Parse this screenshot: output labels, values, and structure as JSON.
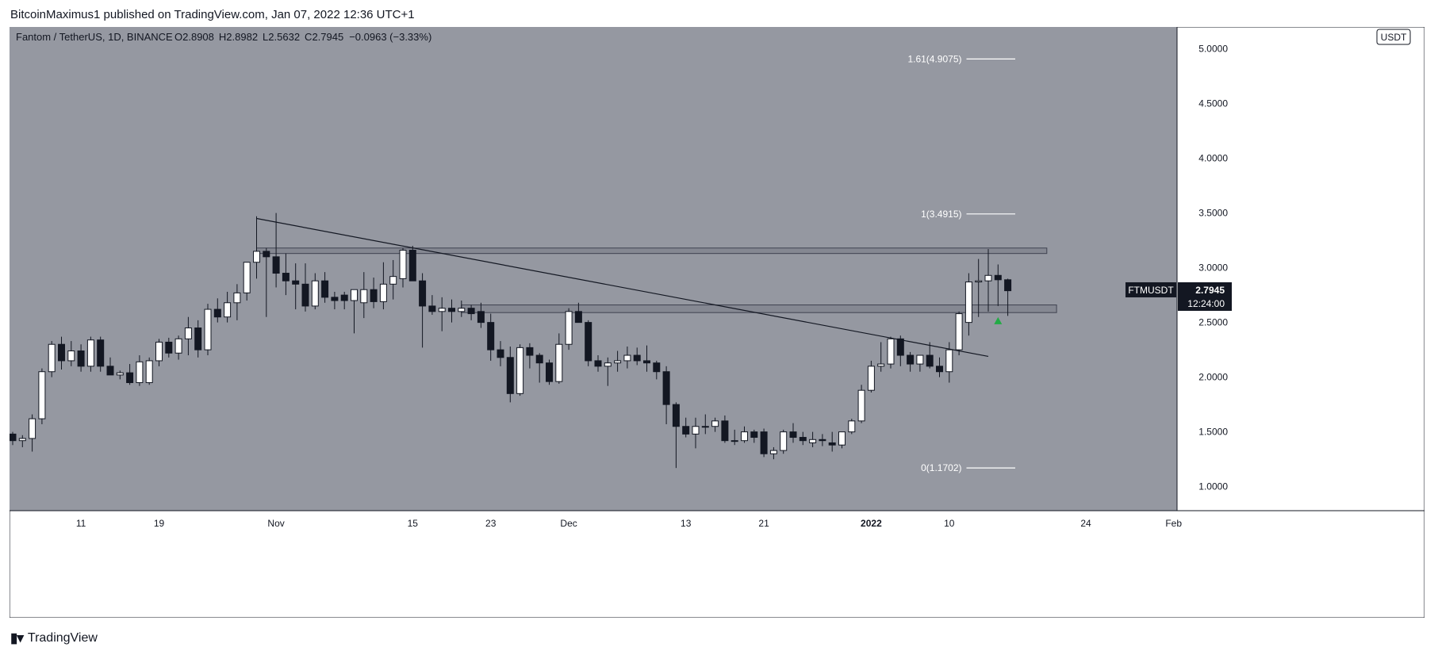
{
  "publisher_line": "BitcoinMaximus1 published on TradingView.com, Jan 07, 2022 12:36 UTC+1",
  "footer_brand": "TradingView",
  "colors": {
    "plot_bg": "#9598a1",
    "axis_bg": "#ffffff",
    "bull_body": "#ffffff",
    "bear_body": "#131722",
    "wick": "#131722",
    "zone_fill": "#787b86",
    "fib_line": "#ffffff",
    "trend_line": "#131722",
    "arrow": "#22ab45",
    "price_label_bg": "#131722"
  },
  "chart_data": {
    "type": "candlestick",
    "symbol_line": {
      "name": "Fantom / TetherUS, 1D, BINANCE",
      "o_label": "O",
      "o_value": "2.8908",
      "h_label": "H",
      "h_value": "2.8982",
      "l_label": "L",
      "l_value": "2.5632",
      "c_label": "C",
      "c_value": "2.7945",
      "change": "−0.0963 (−3.33%)"
    },
    "currency": "USDT",
    "ylim": [
      0.78,
      5.2
    ],
    "x_range": [
      0,
      120
    ],
    "y_ticks": [
      {
        "value": 5.0,
        "label": "5.0000"
      },
      {
        "value": 4.5,
        "label": "4.5000"
      },
      {
        "value": 4.0,
        "label": "4.0000"
      },
      {
        "value": 3.5,
        "label": "3.5000"
      },
      {
        "value": 3.0,
        "label": "3.0000"
      },
      {
        "value": 2.5,
        "label": "2.5000"
      },
      {
        "value": 2.0,
        "label": "2.0000"
      },
      {
        "value": 1.5,
        "label": "1.5000"
      },
      {
        "value": 1.0,
        "label": "1.0000"
      }
    ],
    "x_ticks": [
      {
        "index": 7,
        "label": "11",
        "bold": false
      },
      {
        "index": 15,
        "label": "19",
        "bold": false
      },
      {
        "index": 27,
        "label": "Nov",
        "bold": false
      },
      {
        "index": 41,
        "label": "15",
        "bold": false
      },
      {
        "index": 49,
        "label": "23",
        "bold": false
      },
      {
        "index": 57,
        "label": "Dec",
        "bold": false
      },
      {
        "index": 69,
        "label": "13",
        "bold": false
      },
      {
        "index": 77,
        "label": "21",
        "bold": false
      },
      {
        "index": 88,
        "label": "2022",
        "bold": true
      },
      {
        "index": 96,
        "label": "10",
        "bold": false
      },
      {
        "index": 110,
        "label": "24",
        "bold": false
      },
      {
        "index": 119,
        "label": "Feb",
        "bold": false
      }
    ],
    "candles": [
      [
        1.48,
        1.5,
        1.38,
        1.42
      ],
      [
        1.42,
        1.47,
        1.36,
        1.44
      ],
      [
        1.44,
        1.66,
        1.32,
        1.62
      ],
      [
        1.62,
        2.08,
        1.57,
        2.05
      ],
      [
        2.05,
        2.33,
        2.0,
        2.3
      ],
      [
        2.3,
        2.37,
        2.07,
        2.15
      ],
      [
        2.15,
        2.33,
        2.1,
        2.24
      ],
      [
        2.24,
        2.3,
        2.05,
        2.1
      ],
      [
        2.1,
        2.37,
        2.05,
        2.34
      ],
      [
        2.34,
        2.37,
        2.05,
        2.1
      ],
      [
        2.1,
        2.18,
        2.02,
        2.02
      ],
      [
        2.02,
        2.06,
        1.98,
        2.04
      ],
      [
        2.04,
        2.12,
        1.93,
        1.95
      ],
      [
        1.95,
        2.2,
        1.92,
        2.14
      ],
      [
        1.95,
        2.18,
        1.93,
        2.15
      ],
      [
        2.15,
        2.35,
        2.1,
        2.32
      ],
      [
        2.32,
        2.36,
        2.18,
        2.22
      ],
      [
        2.22,
        2.38,
        2.16,
        2.35
      ],
      [
        2.35,
        2.55,
        2.2,
        2.45
      ],
      [
        2.45,
        2.52,
        2.18,
        2.25
      ],
      [
        2.25,
        2.67,
        2.2,
        2.62
      ],
      [
        2.62,
        2.72,
        2.5,
        2.55
      ],
      [
        2.55,
        2.78,
        2.5,
        2.68
      ],
      [
        2.68,
        2.85,
        2.52,
        2.77
      ],
      [
        2.77,
        3.04,
        2.7,
        3.05
      ],
      [
        3.05,
        3.47,
        2.9,
        3.15
      ],
      [
        3.15,
        3.18,
        2.55,
        3.1
      ],
      [
        3.1,
        3.5,
        2.82,
        2.95
      ],
      [
        2.95,
        3.13,
        2.75,
        2.88
      ],
      [
        2.88,
        3.04,
        2.62,
        2.85
      ],
      [
        2.85,
        3.04,
        2.6,
        2.65
      ],
      [
        2.65,
        2.95,
        2.62,
        2.88
      ],
      [
        2.88,
        2.96,
        2.68,
        2.73
      ],
      [
        2.73,
        2.78,
        2.62,
        2.7
      ],
      [
        2.75,
        2.78,
        2.62,
        2.7
      ],
      [
        2.7,
        2.8,
        2.4,
        2.8
      ],
      [
        2.68,
        2.96,
        2.54,
        2.8
      ],
      [
        2.8,
        2.91,
        2.63,
        2.69
      ],
      [
        2.69,
        3.05,
        2.62,
        2.85
      ],
      [
        2.85,
        3.07,
        2.71,
        2.92
      ],
      [
        2.9,
        3.18,
        2.82,
        3.16
      ],
      [
        3.16,
        3.2,
        2.9,
        2.88
      ],
      [
        2.88,
        2.95,
        2.27,
        2.65
      ],
      [
        2.65,
        2.75,
        2.57,
        2.6
      ],
      [
        2.6,
        2.73,
        2.42,
        2.63
      ],
      [
        2.63,
        2.71,
        2.5,
        2.6
      ],
      [
        2.6,
        2.7,
        2.55,
        2.63
      ],
      [
        2.63,
        2.66,
        2.52,
        2.58
      ],
      [
        2.6,
        2.68,
        2.45,
        2.5
      ],
      [
        2.5,
        2.58,
        2.15,
        2.25
      ],
      [
        2.25,
        2.33,
        2.1,
        2.18
      ],
      [
        2.18,
        2.28,
        1.77,
        1.85
      ],
      [
        1.85,
        2.3,
        1.83,
        2.27
      ],
      [
        2.27,
        2.31,
        2.08,
        2.2
      ],
      [
        2.2,
        2.22,
        1.95,
        2.13
      ],
      [
        2.13,
        2.16,
        1.93,
        1.96
      ],
      [
        1.96,
        2.4,
        1.94,
        2.3
      ],
      [
        2.3,
        2.63,
        2.25,
        2.6
      ],
      [
        2.6,
        2.68,
        2.5,
        2.5
      ],
      [
        2.5,
        2.52,
        2.1,
        2.15
      ],
      [
        2.15,
        2.2,
        2.05,
        2.1
      ],
      [
        2.1,
        2.18,
        1.92,
        2.13
      ],
      [
        2.13,
        2.24,
        2.05,
        2.15
      ],
      [
        2.15,
        2.28,
        2.08,
        2.2
      ],
      [
        2.2,
        2.27,
        2.11,
        2.15
      ],
      [
        2.15,
        2.29,
        2.05,
        2.13
      ],
      [
        2.13,
        2.15,
        1.98,
        2.05
      ],
      [
        2.05,
        2.1,
        1.57,
        1.75
      ],
      [
        1.75,
        1.77,
        1.17,
        1.55
      ],
      [
        1.55,
        1.63,
        1.45,
        1.48
      ],
      [
        1.48,
        1.63,
        1.35,
        1.55
      ],
      [
        1.55,
        1.66,
        1.48,
        1.55
      ],
      [
        1.55,
        1.63,
        1.5,
        1.6
      ],
      [
        1.6,
        1.65,
        1.4,
        1.42
      ],
      [
        1.42,
        1.52,
        1.38,
        1.42
      ],
      [
        1.42,
        1.55,
        1.4,
        1.5
      ],
      [
        1.5,
        1.52,
        1.4,
        1.45
      ],
      [
        1.5,
        1.53,
        1.27,
        1.3
      ],
      [
        1.3,
        1.36,
        1.25,
        1.33
      ],
      [
        1.33,
        1.52,
        1.3,
        1.5
      ],
      [
        1.5,
        1.58,
        1.4,
        1.45
      ],
      [
        1.45,
        1.5,
        1.38,
        1.42
      ],
      [
        1.4,
        1.5,
        1.36,
        1.43
      ],
      [
        1.43,
        1.48,
        1.37,
        1.42
      ],
      [
        1.4,
        1.5,
        1.32,
        1.38
      ],
      [
        1.38,
        1.5,
        1.35,
        1.5
      ],
      [
        1.5,
        1.62,
        1.48,
        1.6
      ],
      [
        1.6,
        1.93,
        1.58,
        1.88
      ],
      [
        1.88,
        2.15,
        1.86,
        2.1
      ],
      [
        2.1,
        2.32,
        2.05,
        2.12
      ],
      [
        2.12,
        2.37,
        2.08,
        2.35
      ],
      [
        2.35,
        2.38,
        2.1,
        2.2
      ],
      [
        2.2,
        2.23,
        2.05,
        2.12
      ],
      [
        2.12,
        2.18,
        2.05,
        2.2
      ],
      [
        2.2,
        2.32,
        2.08,
        2.1
      ],
      [
        2.1,
        2.18,
        2.0,
        2.05
      ],
      [
        2.05,
        2.32,
        1.95,
        2.25
      ],
      [
        2.25,
        2.6,
        2.2,
        2.58
      ],
      [
        2.5,
        2.95,
        2.38,
        2.87
      ],
      [
        2.87,
        3.08,
        2.55,
        2.88
      ],
      [
        2.88,
        3.17,
        2.6,
        2.93
      ],
      [
        2.93,
        3.03,
        2.65,
        2.89
      ],
      [
        2.89,
        2.9,
        2.56,
        2.79
      ]
    ],
    "resistance_zones": [
      {
        "index_start": 25,
        "index_end": 106,
        "low": 3.13,
        "high": 3.18
      },
      {
        "index_start": 46,
        "index_end": 107,
        "low": 2.59,
        "high": 2.66
      }
    ],
    "trendline": {
      "x0": 25,
      "y0": 3.45,
      "x1": 100,
      "y1": 2.19
    },
    "fib_levels": [
      {
        "label": "1.61(4.9075)",
        "value": 4.9075
      },
      {
        "label": "1(3.4915)",
        "value": 3.4915
      },
      {
        "label": "0(1.1702)",
        "value": 1.1702
      }
    ],
    "fib_x_range": [
      95,
      100
    ],
    "arrow": {
      "index": 101,
      "value": 2.52,
      "direction": "up"
    },
    "last_price": {
      "symbol": "FTMUSDT",
      "value": 2.7945,
      "label": "2.7945",
      "countdown": "12:24:00"
    }
  }
}
